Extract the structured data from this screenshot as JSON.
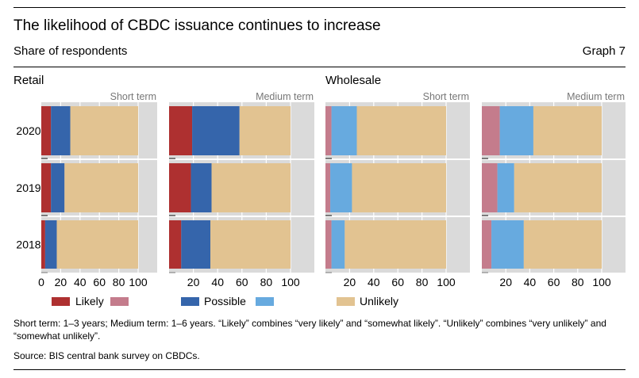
{
  "header": {
    "title": "The likelihood of CBDC issuance continues to increase",
    "subtitle": "Share of respondents",
    "graph_number": "Graph 7"
  },
  "sections": {
    "retail": "Retail",
    "wholesale": "Wholesale"
  },
  "colors": {
    "likely_retail": "#ae3030",
    "likely_wholesale": "#c47c8c",
    "possible_retail": "#3565ab",
    "possible_wholesale": "#67aadf",
    "unlikely": "#e2c391",
    "panel_bg": "#dadada",
    "grid": "#ffffff"
  },
  "legend": [
    {
      "label": "Likely",
      "color_key": "likely_retail"
    },
    {
      "label": "",
      "color_key": "likely_wholesale"
    },
    {
      "label": "Possible",
      "color_key": "possible_retail"
    },
    {
      "label": "",
      "color_key": "possible_wholesale"
    },
    {
      "label": "Unlikely",
      "color_key": "unlikely"
    }
  ],
  "footer": {
    "note": "Short term: 1–3 years; Medium term: 1–6 years. “Likely” combines “very likely” and “somewhat likely”. “Unlikely” combines “very unlikely” and “somewhat unlikely”.",
    "source": "Source: BIS central bank survey on CBDCs."
  },
  "chart_data": [
    {
      "type": "bar",
      "orientation": "horizontal",
      "stacked": true,
      "group": "Retail",
      "title": "Short term",
      "categories": [
        "2020",
        "2019",
        "2018"
      ],
      "series": [
        {
          "name": "Likely",
          "values": [
            10,
            10,
            4
          ]
        },
        {
          "name": "Possible",
          "values": [
            20,
            14,
            12
          ]
        },
        {
          "name": "Unlikely",
          "values": [
            70,
            76,
            84
          ]
        }
      ],
      "xticks": [
        "0",
        "20",
        "40",
        "60",
        "80",
        "100"
      ],
      "xlim": [
        0,
        120
      ],
      "grid": true
    },
    {
      "type": "bar",
      "orientation": "horizontal",
      "stacked": true,
      "group": "Retail",
      "title": "Medium term",
      "categories": [
        "2020",
        "2019",
        "2018"
      ],
      "series": [
        {
          "name": "Likely",
          "values": [
            19,
            18,
            10
          ]
        },
        {
          "name": "Possible",
          "values": [
            39,
            17,
            24
          ]
        },
        {
          "name": "Unlikely",
          "values": [
            42,
            65,
            66
          ]
        }
      ],
      "xticks": [
        "20",
        "40",
        "60",
        "80",
        "100"
      ],
      "xlim": [
        0,
        120
      ],
      "grid": true
    },
    {
      "type": "bar",
      "orientation": "horizontal",
      "stacked": true,
      "group": "Wholesale",
      "title": "Short term",
      "categories": [
        "2020",
        "2019",
        "2018"
      ],
      "series": [
        {
          "name": "Likely",
          "values": [
            5,
            4,
            5
          ]
        },
        {
          "name": "Possible",
          "values": [
            21,
            18,
            11
          ]
        },
        {
          "name": "Unlikely",
          "values": [
            74,
            78,
            84
          ]
        }
      ],
      "xticks": [
        "20",
        "40",
        "60",
        "80",
        "100"
      ],
      "xlim": [
        0,
        120
      ],
      "grid": true
    },
    {
      "type": "bar",
      "orientation": "horizontal",
      "stacked": true,
      "group": "Wholesale",
      "title": "Medium term",
      "categories": [
        "2020",
        "2019",
        "2018"
      ],
      "series": [
        {
          "name": "Likely",
          "values": [
            15,
            13,
            8
          ]
        },
        {
          "name": "Possible",
          "values": [
            28,
            14,
            27
          ]
        },
        {
          "name": "Unlikely",
          "values": [
            57,
            73,
            65
          ]
        }
      ],
      "xticks": [
        "20",
        "40",
        "60",
        "80",
        "100"
      ],
      "xlim": [
        0,
        120
      ],
      "grid": true
    }
  ]
}
